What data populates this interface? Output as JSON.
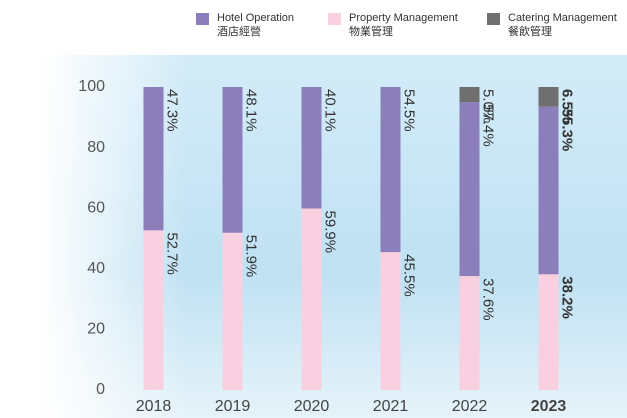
{
  "chart_data": {
    "type": "stacked_bar",
    "categories": [
      "2018",
      "2019",
      "2020",
      "2021",
      "2022",
      "2023"
    ],
    "series": [
      {
        "name": "Hotel Operation",
        "name_zh": "酒店經營",
        "color": "#8c7dbb",
        "values": [
          47.3,
          48.1,
          40.1,
          54.5,
          57.4,
          55.3
        ],
        "value_labels": [
          "47.3%",
          "48.1%",
          "40.1%",
          "54.5%",
          "57.4%",
          "55.3%"
        ]
      },
      {
        "name": "Property Management",
        "name_zh": "物業管理",
        "color": "#f8d0e0",
        "values": [
          52.7,
          51.9,
          59.9,
          45.5,
          37.6,
          38.2
        ],
        "value_labels": [
          "52.7%",
          "51.9%",
          "59.9%",
          "45.5%",
          "37.6%",
          "38.2%"
        ]
      },
      {
        "name": "Catering Management",
        "name_zh": "餐飲管理",
        "color": "#6f6f6f",
        "values": [
          null,
          null,
          null,
          null,
          5.0,
          6.5
        ],
        "value_labels": [
          null,
          null,
          null,
          null,
          "5.0%",
          "6.5%"
        ]
      }
    ],
    "ylim": [
      0,
      100
    ],
    "yticks": [
      0,
      20,
      40,
      60,
      80,
      100
    ],
    "highlight_index": 5
  }
}
